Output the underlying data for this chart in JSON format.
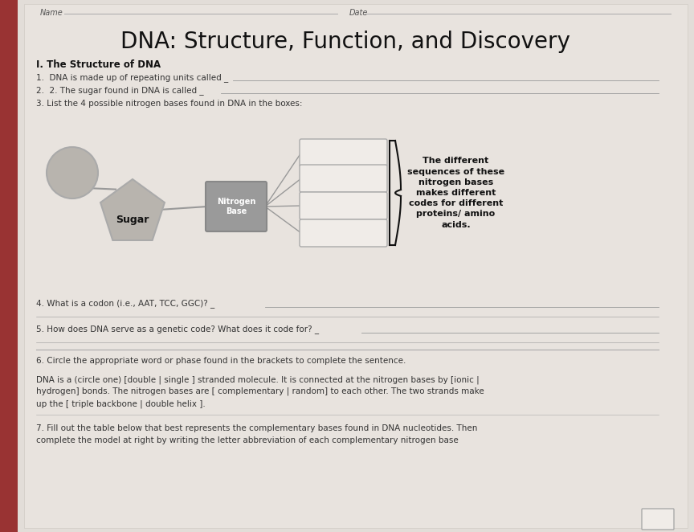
{
  "bg_color": "#c8c3bc",
  "paper_color": "#e2ddd8",
  "title": "DNA: Structure, Function, and Discovery",
  "title_fontsize": 20,
  "section_header": "I. The Structure of DNA",
  "q1": "1.  DNA is made up of repeating units called _",
  "q2": "2.  2. The sugar found in DNA is called _",
  "q3": "3. List the 4 possible nitrogen bases found in DNA in the boxes:",
  "q4": "4. What is a codon (i.e., AAT, TCC, GGC)? _",
  "q5": "5. How does DNA serve as a genetic code? What does it code for? _",
  "q6_intro": "6. Circle the appropriate word or phase found in the brackets to complete the sentence.",
  "q6_body1": "DNA is a (circle one) [double | single ] stranded molecule. It is connected at the nitrogen bases by [ionic |",
  "q6_body2": "hydrogen] bonds. The nitrogen bases are [ complementary | random] to each other. The two strands make",
  "q6_body3": "up the [ triple backbone | double helix ].",
  "q7_line1": "7. Fill out the table below that best represents the complementary bases found in DNA nucleotides. Then",
  "q7_line2": "complete the model at right by writing the letter abbreviation of each complementary nitrogen base",
  "annotation": "The different\nsequences of these\nnitrogen bases\nmakes different\ncodes for different\nproteins/ amino\nacids.",
  "sugar_label": "Sugar",
  "nitrogen_label": "Nitrogen\nBase",
  "line_color": "#999999",
  "text_color": "#333333",
  "dark_text": "#111111",
  "shape_fill": "#b8b4ae",
  "shape_edge": "#aaaaaa",
  "nb_fill": "#9a9a9a",
  "box_fill": "#f0ece8",
  "box_edge": "#aaaaaa",
  "red_bar": "#993333"
}
